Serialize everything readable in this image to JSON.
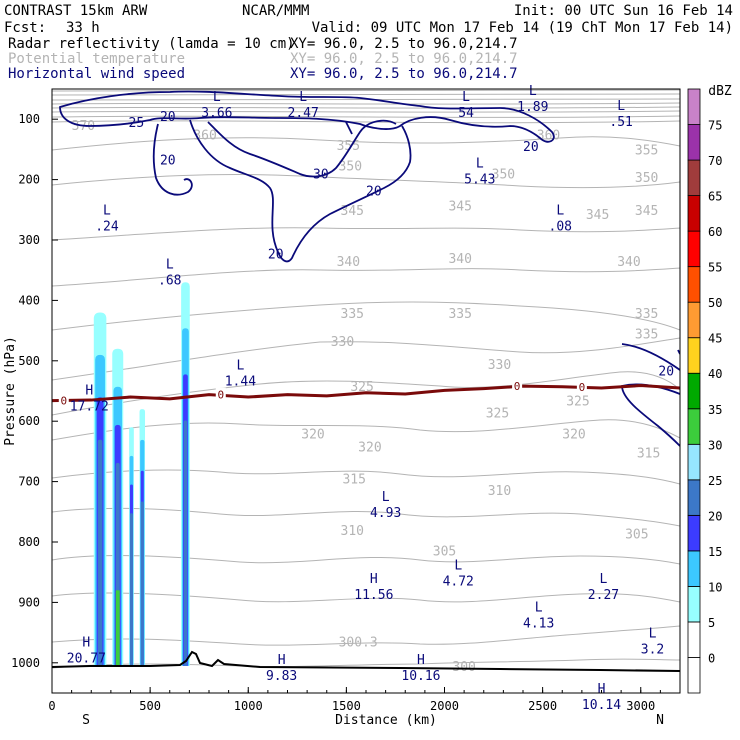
{
  "header": {
    "model": "CONTRAST 15km ARW",
    "center": "NCAR/MMM",
    "init": "Init: 00 UTC Sun 16 Feb 14",
    "fcst_label": "Fcst:",
    "fcst_value": "33 h",
    "valid": "Valid: 09 UTC Mon 17 Feb 14 (19 ChT Mon 17 Feb 14)",
    "fields": [
      {
        "name": "Radar reflectivity (lamda = 10 cm)",
        "xy": "XY=  96.0,  2.5 to  96.0,214.7",
        "color": "#000000"
      },
      {
        "name": "Potential temperature",
        "xy": "XY=  96.0,  2.5 to  96.0,214.7",
        "color": "#b4b4b4"
      },
      {
        "name": "Horizontal wind speed",
        "xy": "XY=  96.0,  2.5 to  96.0,214.7",
        "color": "#0a0a7a"
      }
    ]
  },
  "chart_data": {
    "type": "cross-section",
    "xlabel": "Distance (km)",
    "ylabel": "Pressure (hPa)",
    "xlim": [
      0,
      3200
    ],
    "ylim": [
      1050,
      50
    ],
    "x_ticks": [
      0,
      500,
      1000,
      1500,
      2000,
      2500,
      3000
    ],
    "y_ticks": [
      100,
      200,
      300,
      400,
      500,
      600,
      700,
      800,
      900,
      1000
    ],
    "endpoints": {
      "left": "S",
      "right": "N"
    },
    "colorbar": {
      "unit": "dBZ",
      "levels": [
        0,
        5,
        10,
        15,
        20,
        25,
        30,
        35,
        40,
        45,
        50,
        55,
        60,
        65,
        70,
        75
      ],
      "colors": [
        "#ffffff",
        "#97ffff",
        "#3cc8ff",
        "#3c3cff",
        "#3c78c8",
        "#96e6ff",
        "#3ccd3c",
        "#00aa00",
        "#ffd21e",
        "#ff9b32",
        "#ff5000",
        "#ff0000",
        "#c80000",
        "#a03c3c",
        "#9b32aa",
        "#c882c8"
      ]
    },
    "theta_labels": [
      {
        "t": "370",
        "x": 160,
        "p": 110
      },
      {
        "t": "360",
        "x": 780,
        "p": 125
      },
      {
        "t": "355",
        "x": 1510,
        "p": 143
      },
      {
        "t": "350",
        "x": 1520,
        "p": 177
      },
      {
        "t": "360",
        "x": 2530,
        "p": 125
      },
      {
        "t": "355",
        "x": 3030,
        "p": 150
      },
      {
        "t": "350",
        "x": 2300,
        "p": 190
      },
      {
        "t": "350",
        "x": 3030,
        "p": 196
      },
      {
        "t": "345",
        "x": 1530,
        "p": 250
      },
      {
        "t": "345",
        "x": 2080,
        "p": 243
      },
      {
        "t": "345",
        "x": 2780,
        "p": 257
      },
      {
        "t": "345",
        "x": 3030,
        "p": 250
      },
      {
        "t": "340",
        "x": 1510,
        "p": 335
      },
      {
        "t": "340",
        "x": 2080,
        "p": 330
      },
      {
        "t": "340",
        "x": 2940,
        "p": 335
      },
      {
        "t": "335",
        "x": 1530,
        "p": 421
      },
      {
        "t": "335",
        "x": 2080,
        "p": 421
      },
      {
        "t": "335",
        "x": 3030,
        "p": 421
      },
      {
        "t": "335",
        "x": 3030,
        "p": 455
      },
      {
        "t": "330",
        "x": 1480,
        "p": 467
      },
      {
        "t": "330",
        "x": 2280,
        "p": 505
      },
      {
        "t": "325",
        "x": 1580,
        "p": 542
      },
      {
        "t": "325",
        "x": 2270,
        "p": 586
      },
      {
        "t": "325",
        "x": 2680,
        "p": 566
      },
      {
        "t": "320",
        "x": 1330,
        "p": 620
      },
      {
        "t": "320",
        "x": 1620,
        "p": 642
      },
      {
        "t": "320",
        "x": 2660,
        "p": 620
      },
      {
        "t": "315",
        "x": 3040,
        "p": 652
      },
      {
        "t": "315",
        "x": 1540,
        "p": 695
      },
      {
        "t": "310",
        "x": 2280,
        "p": 714
      },
      {
        "t": "310",
        "x": 1530,
        "p": 780
      },
      {
        "t": "305",
        "x": 2000,
        "p": 814
      },
      {
        "t": "305",
        "x": 2980,
        "p": 786
      },
      {
        "t": "300.3",
        "x": 1560,
        "p": 965
      },
      {
        "t": "300",
        "x": 2100,
        "p": 1005
      }
    ],
    "wind_labels": [
      {
        "t": "25",
        "x": 430,
        "p": 105
      },
      {
        "t": "20",
        "x": 590,
        "p": 95
      },
      {
        "t": "20",
        "x": 590,
        "p": 167
      },
      {
        "t": "30",
        "x": 1370,
        "p": 190
      },
      {
        "t": "20",
        "x": 1640,
        "p": 218
      },
      {
        "t": "20",
        "x": 1140,
        "p": 322
      },
      {
        "t": "20",
        "x": 2440,
        "p": 144
      },
      {
        "t": "20",
        "x": 3130,
        "p": 516
      }
    ],
    "extrema": [
      {
        "kind": "L",
        "value": "3.66",
        "x": 840,
        "p": 90
      },
      {
        "kind": "L",
        "value": "2.47",
        "x": 1280,
        "p": 90
      },
      {
        "kind": "L",
        "value": "54",
        "x": 2110,
        "p": 90
      },
      {
        "kind": "L",
        "value": "1.89",
        "x": 2450,
        "p": 80
      },
      {
        "kind": "L",
        "value": ".51",
        "x": 2900,
        "p": 105
      },
      {
        "kind": "L",
        "value": "5.43",
        "x": 2180,
        "p": 200
      },
      {
        "kind": "L",
        "value": ".24",
        "x": 280,
        "p": 278
      },
      {
        "kind": "L",
        "value": ".08",
        "x": 2590,
        "p": 278
      },
      {
        "kind": "L",
        "value": ".68",
        "x": 600,
        "p": 367
      },
      {
        "kind": "L",
        "value": "1.44",
        "x": 960,
        "p": 534
      },
      {
        "kind": "H",
        "value": "17.72",
        "x": 190,
        "p": 576
      },
      {
        "kind": "L",
        "value": "4.93",
        "x": 1700,
        "p": 752
      },
      {
        "kind": "L",
        "value": "4.72",
        "x": 2070,
        "p": 865
      },
      {
        "kind": "H",
        "value": "11.56",
        "x": 1640,
        "p": 888
      },
      {
        "kind": "L",
        "value": "2.27",
        "x": 2810,
        "p": 888
      },
      {
        "kind": "L",
        "value": "4.13",
        "x": 2480,
        "p": 935
      },
      {
        "kind": "L",
        "value": "3.2",
        "x": 3060,
        "p": 978
      },
      {
        "kind": "H",
        "value": "20.77",
        "x": 175,
        "p": 993
      },
      {
        "kind": "H",
        "value": "9.83",
        "x": 1170,
        "p": 1022
      },
      {
        "kind": "H",
        "value": "10.16",
        "x": 1880,
        "p": 1022
      },
      {
        "kind": "H",
        "value": "10.14",
        "x": 2800,
        "p": 1070
      }
    ],
    "freezing_line": {
      "label": "0",
      "points": [
        [
          0,
          566
        ],
        [
          200,
          565
        ],
        [
          400,
          560
        ],
        [
          600,
          563
        ],
        [
          800,
          556
        ],
        [
          1000,
          560
        ],
        [
          1200,
          556
        ],
        [
          1400,
          558
        ],
        [
          1600,
          553
        ],
        [
          1800,
          555
        ],
        [
          2000,
          549
        ],
        [
          2200,
          546
        ],
        [
          2400,
          542
        ],
        [
          2600,
          543
        ],
        [
          2800,
          545
        ],
        [
          3000,
          541
        ],
        [
          3200,
          545
        ]
      ],
      "label_positions": [
        60,
        860,
        2370,
        2700
      ]
    },
    "reflectivity_columns": [
      {
        "x": 245,
        "p_top": 420,
        "p_bottom": 1005,
        "half_width": 32
      },
      {
        "x": 335,
        "p_top": 480,
        "p_bottom": 1005,
        "half_width": 28
      },
      {
        "x": 405,
        "p_top": 610,
        "p_bottom": 1005,
        "half_width": 12
      },
      {
        "x": 460,
        "p_top": 580,
        "p_bottom": 1005,
        "half_width": 14
      },
      {
        "x": 680,
        "p_top": 370,
        "p_bottom": 1005,
        "half_width": 22
      }
    ]
  }
}
